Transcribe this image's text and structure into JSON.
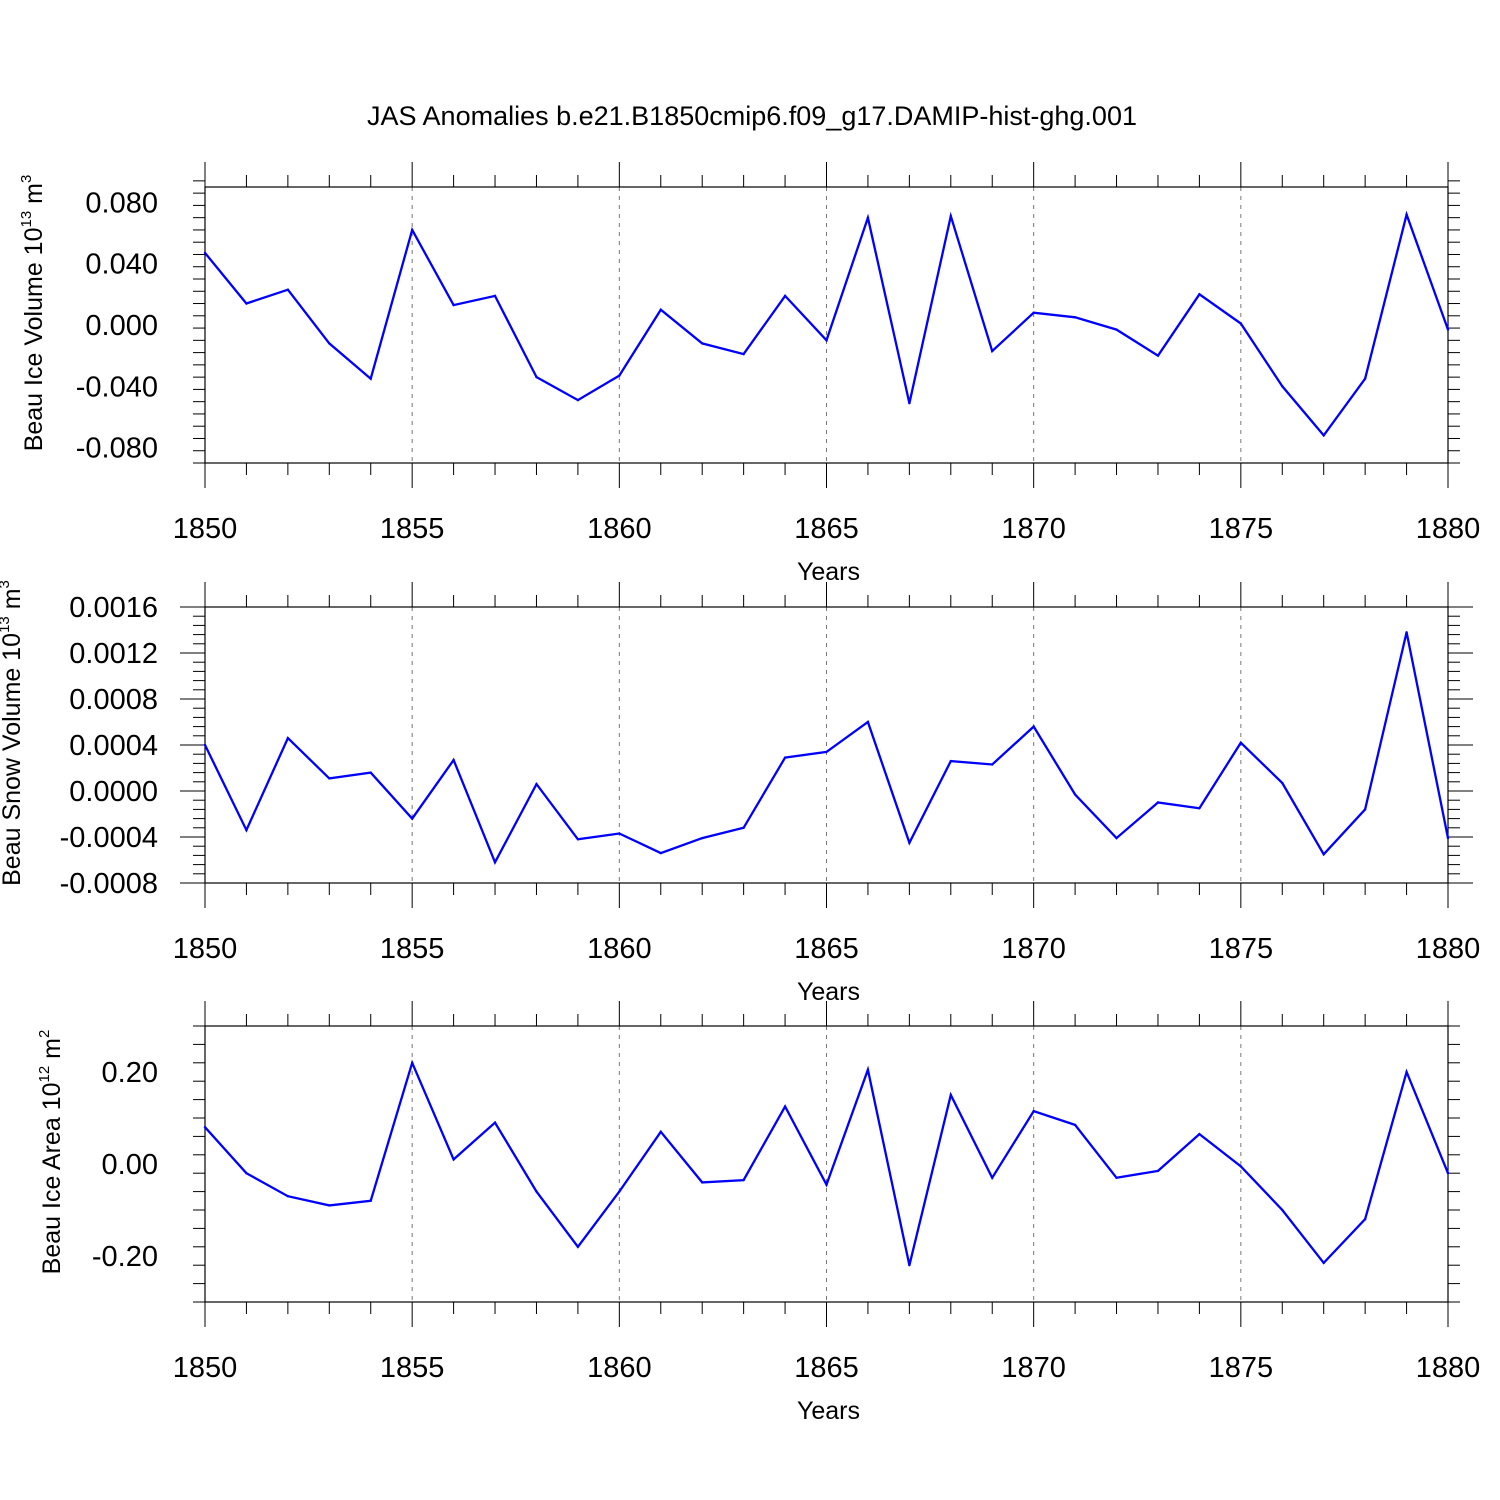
{
  "title": "JAS Anomalies b.e21.B1850cmip6.f09_g17.DAMIP-hist-ghg.001",
  "line_color": "#0000ff",
  "chart_data": [
    {
      "type": "line",
      "ylabel_prefix": "Beau Ice Volume 10",
      "ylabel_exp": "13",
      "ylabel_unit": " m",
      "ylabel_unit_exp": "3",
      "xlabel": "Years",
      "xlim": [
        1850,
        1880
      ],
      "ylim": [
        -0.09,
        0.09
      ],
      "yticks": [
        -0.08,
        -0.04,
        0.0,
        0.04,
        0.08
      ],
      "ytick_labels": [
        "-0.080",
        "-0.040",
        "0.000",
        "0.040",
        "0.080"
      ],
      "xticks": [
        1850,
        1855,
        1860,
        1865,
        1870,
        1875,
        1880
      ],
      "xtick_labels": [
        "1850",
        "1855",
        "1860",
        "1865",
        "1870",
        "1875",
        "1880"
      ],
      "x": [
        1850,
        1851,
        1852,
        1853,
        1854,
        1855,
        1856,
        1857,
        1858,
        1859,
        1860,
        1861,
        1862,
        1863,
        1864,
        1865,
        1866,
        1867,
        1868,
        1869,
        1870,
        1871,
        1872,
        1873,
        1874,
        1875,
        1876,
        1877,
        1878,
        1879,
        1880
      ],
      "values": [
        0.047,
        0.014,
        0.023,
        -0.012,
        -0.035,
        0.062,
        0.013,
        0.019,
        -0.034,
        -0.049,
        -0.033,
        0.01,
        -0.012,
        -0.019,
        0.019,
        -0.01,
        0.07,
        -0.051,
        0.071,
        -0.017,
        0.008,
        0.005,
        -0.003,
        -0.02,
        0.02,
        0.001,
        -0.04,
        -0.072,
        -0.035,
        0.072,
        -0.003
      ]
    },
    {
      "type": "line",
      "ylabel_prefix": "Beau Snow Volume 10",
      "ylabel_exp": "13",
      "ylabel_unit": " m",
      "ylabel_unit_exp": "3",
      "xlabel": "Years",
      "xlim": [
        1850,
        1880
      ],
      "ylim": [
        -0.0008,
        0.0016
      ],
      "yticks": [
        -0.0008,
        -0.0004,
        0.0,
        0.0004,
        0.0008,
        0.0012,
        0.0016
      ],
      "ytick_labels": [
        "-0.0008",
        "-0.0004",
        "0.0000",
        "0.0004",
        "0.0008",
        "0.0012",
        "0.0016"
      ],
      "xticks": [
        1850,
        1855,
        1860,
        1865,
        1870,
        1875,
        1880
      ],
      "xtick_labels": [
        "1850",
        "1855",
        "1860",
        "1865",
        "1870",
        "1875",
        "1880"
      ],
      "x": [
        1850,
        1851,
        1852,
        1853,
        1854,
        1855,
        1856,
        1857,
        1858,
        1859,
        1860,
        1861,
        1862,
        1863,
        1864,
        1865,
        1866,
        1867,
        1868,
        1869,
        1870,
        1871,
        1872,
        1873,
        1874,
        1875,
        1876,
        1877,
        1878,
        1879,
        1880
      ],
      "values": [
        0.0004,
        -0.00034,
        0.00046,
        0.00011,
        0.00016,
        -0.00024,
        0.00027,
        -0.00062,
        6e-05,
        -0.00042,
        -0.00037,
        -0.00054,
        -0.00041,
        -0.00032,
        0.00029,
        0.00034,
        0.0006,
        -0.00045,
        0.00026,
        0.00023,
        0.00056,
        -3e-05,
        -0.00041,
        -0.0001,
        -0.00015,
        0.00042,
        7e-05,
        -0.00055,
        -0.00016,
        0.00138,
        -0.00041
      ]
    },
    {
      "type": "line",
      "ylabel_prefix": "Beau Ice Area 10",
      "ylabel_exp": "12",
      "ylabel_unit": " m",
      "ylabel_unit_exp": "2",
      "xlabel": "Years",
      "xlim": [
        1850,
        1880
      ],
      "ylim": [
        -0.3,
        0.3
      ],
      "yticks": [
        -0.2,
        0.0,
        0.2
      ],
      "ytick_labels": [
        "-0.20",
        "0.00",
        "0.20"
      ],
      "xticks": [
        1850,
        1855,
        1860,
        1865,
        1870,
        1875,
        1880
      ],
      "xtick_labels": [
        "1850",
        "1855",
        "1860",
        "1865",
        "1870",
        "1875",
        "1880"
      ],
      "x": [
        1850,
        1851,
        1852,
        1853,
        1854,
        1855,
        1856,
        1857,
        1858,
        1859,
        1860,
        1861,
        1862,
        1863,
        1864,
        1865,
        1866,
        1867,
        1868,
        1869,
        1870,
        1871,
        1872,
        1873,
        1874,
        1875,
        1876,
        1877,
        1878,
        1879,
        1880
      ],
      "values": [
        0.08,
        -0.02,
        -0.07,
        -0.09,
        -0.08,
        0.22,
        0.01,
        0.09,
        -0.06,
        -0.18,
        -0.06,
        0.07,
        -0.04,
        -0.035,
        0.125,
        -0.045,
        0.205,
        -0.22,
        0.15,
        -0.03,
        0.115,
        0.085,
        -0.03,
        -0.015,
        0.065,
        -0.005,
        -0.1,
        -0.215,
        -0.12,
        0.2,
        -0.02
      ]
    }
  ]
}
